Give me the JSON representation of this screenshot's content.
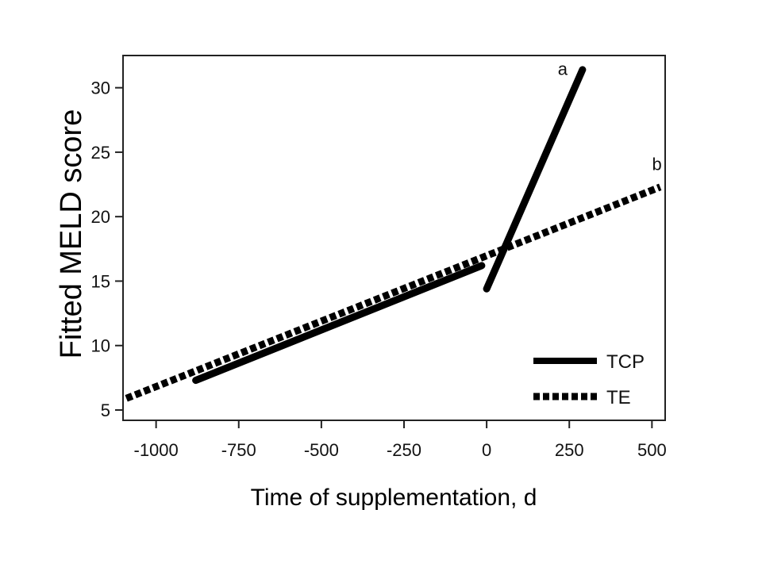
{
  "chart_data": {
    "type": "line",
    "xlabel": "Time of supplementation, d",
    "ylabel": "Fitted MELD score",
    "xlim": [
      -1100,
      540
    ],
    "ylim": [
      4.2,
      32.5
    ],
    "x_ticks": [
      -1000,
      -750,
      -500,
      -250,
      0,
      250,
      500
    ],
    "x_tick_labels": [
      "-1000",
      "-750",
      "-500",
      "-250",
      "0",
      "250",
      "500"
    ],
    "y_ticks": [
      5,
      10,
      15,
      20,
      25,
      30
    ],
    "y_tick_labels": [
      "5",
      "10",
      "15",
      "20",
      "25",
      "30"
    ],
    "grid": false,
    "legend_position": "bottom-right",
    "series": [
      {
        "name": "TCP",
        "style": "solid",
        "color": "#000000",
        "segments": [
          {
            "x": [
              -880,
              -15
            ],
            "y": [
              7.3,
              16.2
            ]
          },
          {
            "x": [
              0,
              290
            ],
            "y": [
              14.4,
              31.4
            ]
          }
        ]
      },
      {
        "name": "TE",
        "style": "dotted",
        "color": "#000000",
        "segments": [
          {
            "x": [
              -1090,
              525
            ],
            "y": [
              5.9,
              22.3
            ]
          }
        ]
      }
    ],
    "annotations": [
      {
        "text": "a",
        "x": 230,
        "y": 31.0
      },
      {
        "text": "b",
        "x": 515,
        "y": 23.6
      }
    ]
  }
}
